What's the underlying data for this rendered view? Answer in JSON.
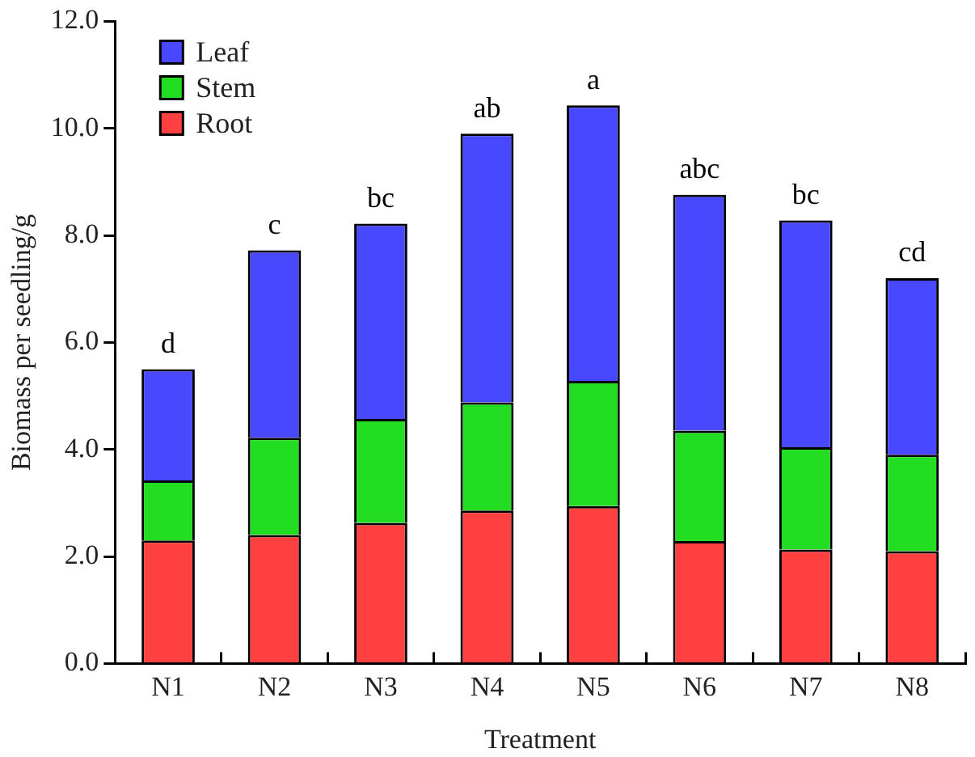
{
  "chart_data": {
    "type": "bar",
    "stacked": true,
    "xlabel": "Treatment",
    "ylabel": "Biomass per seedling/g",
    "categories": [
      "N1",
      "N2",
      "N3",
      "N4",
      "N5",
      "N6",
      "N7",
      "N8"
    ],
    "series": [
      {
        "name": "Root",
        "color": "#ff4040",
        "values": [
          2.3,
          2.4,
          2.63,
          2.86,
          2.94,
          2.29,
          2.13,
          2.1
        ]
      },
      {
        "name": "Stem",
        "color": "#22dd22",
        "values": [
          1.12,
          1.82,
          1.94,
          2.02,
          2.34,
          2.06,
          1.91,
          1.8
        ]
      },
      {
        "name": "Leaf",
        "color": "#4848ff",
        "values": [
          2.08,
          3.5,
          3.65,
          5.02,
          5.15,
          4.41,
          4.24,
          3.3
        ]
      }
    ],
    "ylim": [
      0,
      12
    ],
    "yticks": [
      {
        "value": 0,
        "label": "0.0"
      },
      {
        "value": 2,
        "label": "2.0"
      },
      {
        "value": 4,
        "label": "4.0"
      },
      {
        "value": 6,
        "label": "6.0"
      },
      {
        "value": 8,
        "label": "8.0"
      },
      {
        "value": 10,
        "label": "10.0"
      },
      {
        "value": 12,
        "label": "12.0"
      }
    ],
    "grid": false,
    "legend": "top left",
    "annotations": [
      {
        "text": "d",
        "x": "N1",
        "y": 5.5
      },
      {
        "text": "c",
        "x": "N2",
        "y": 7.72
      },
      {
        "text": "bc",
        "x": "N3",
        "y": 8.22
      },
      {
        "text": "ab",
        "x": "N4",
        "y": 9.9
      },
      {
        "text": "a",
        "x": "N5",
        "y": 10.43
      },
      {
        "text": "abc",
        "x": "N6",
        "y": 8.76
      },
      {
        "text": "bc",
        "x": "N7",
        "y": 8.28
      },
      {
        "text": "cd",
        "x": "N8",
        "y": 7.2
      }
    ]
  }
}
